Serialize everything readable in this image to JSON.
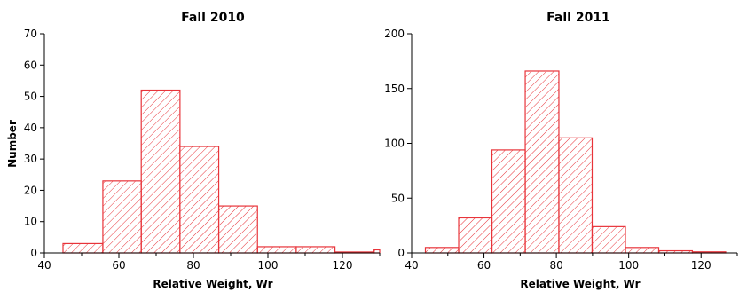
{
  "bar_color": "#e8343a",
  "chart_data": [
    {
      "type": "bar",
      "title": "Fall 2010",
      "xlabel": "Relative Weight, Wr",
      "ylabel": "Number",
      "xlim": [
        40,
        130
      ],
      "ylim": [
        0,
        70
      ],
      "xticks": [
        40,
        60,
        80,
        100,
        120
      ],
      "yticks": [
        0,
        10,
        20,
        30,
        40,
        50,
        60,
        70
      ],
      "grid": false,
      "bins": [
        {
          "start": 45,
          "end": 55.7,
          "value": 3
        },
        {
          "start": 55.7,
          "end": 66.0,
          "value": 23
        },
        {
          "start": 66.0,
          "end": 76.4,
          "value": 52
        },
        {
          "start": 76.4,
          "end": 86.8,
          "value": 34
        },
        {
          "start": 86.8,
          "end": 97.2,
          "value": 15
        },
        {
          "start": 97.2,
          "end": 107.6,
          "value": 2
        },
        {
          "start": 107.6,
          "end": 118.0,
          "value": 2
        },
        {
          "start": 118.0,
          "end": 128.5,
          "value": 0.3
        },
        {
          "start": 128.5,
          "end": 130,
          "value": 1
        }
      ]
    },
    {
      "type": "bar",
      "title": "Fall 2011",
      "xlabel": "Relative Weight, Wr",
      "ylabel": "",
      "xlim": [
        40,
        130
      ],
      "ylim": [
        0,
        200
      ],
      "xticks": [
        40,
        60,
        80,
        100,
        120
      ],
      "yticks": [
        0,
        50,
        100,
        150,
        200
      ],
      "grid": false,
      "bins": [
        {
          "start": 43.8,
          "end": 53.0,
          "value": 5
        },
        {
          "start": 53.0,
          "end": 62.2,
          "value": 32
        },
        {
          "start": 62.2,
          "end": 71.4,
          "value": 94
        },
        {
          "start": 71.4,
          "end": 80.7,
          "value": 166
        },
        {
          "start": 80.7,
          "end": 89.9,
          "value": 105
        },
        {
          "start": 89.9,
          "end": 99.1,
          "value": 24
        },
        {
          "start": 99.1,
          "end": 108.3,
          "value": 5
        },
        {
          "start": 108.3,
          "end": 117.6,
          "value": 2
        },
        {
          "start": 117.6,
          "end": 126.8,
          "value": 1
        }
      ]
    }
  ]
}
